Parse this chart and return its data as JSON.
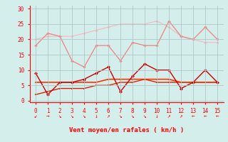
{
  "x": [
    0,
    1,
    2,
    3,
    4,
    5,
    6,
    7,
    8,
    9,
    10,
    11,
    12,
    13,
    14,
    15
  ],
  "line_light_upper": [
    20,
    21,
    21,
    21,
    22,
    23,
    24,
    25,
    25,
    25,
    26,
    24,
    21,
    20,
    19,
    19
  ],
  "line_pink_zigzag": [
    18,
    22,
    21,
    13,
    11,
    18,
    18,
    13,
    19,
    18,
    18,
    26,
    21,
    20,
    24,
    20
  ],
  "line_red_zigzag": [
    9,
    2,
    6,
    6,
    7,
    9,
    11,
    3,
    8,
    12,
    10,
    10,
    4,
    6,
    10,
    6
  ],
  "line_red_trend": [
    2,
    3,
    4,
    4,
    4,
    5,
    5,
    6,
    6,
    7,
    6,
    6,
    6,
    6,
    6,
    6
  ],
  "line_red_flat": [
    6,
    6,
    6,
    6,
    6,
    6,
    7,
    7,
    7,
    7,
    7,
    7,
    6,
    6,
    6,
    6
  ],
  "color_light_upper": "#f5b8b8",
  "color_pink_zigzag": "#f08080",
  "color_red_zigzag": "#cc0000",
  "color_red_trend": "#dd2200",
  "color_red_flat": "#ff3300",
  "bg_color": "#d4eeec",
  "grid_color": "#b0c8c8",
  "xlabel": "Vent moyen/en rafales ( km/h )",
  "yticks": [
    0,
    5,
    10,
    15,
    20,
    25,
    30
  ],
  "xticks": [
    0,
    1,
    2,
    3,
    4,
    5,
    6,
    7,
    8,
    9,
    10,
    11,
    12,
    13,
    14,
    15
  ],
  "ylim": [
    -0.5,
    31
  ],
  "xlim": [
    -0.5,
    15.5
  ],
  "arrows": [
    "↙",
    "→",
    "↘",
    "↘",
    "↘",
    "↓",
    "↗",
    "↘",
    "↘",
    "↘",
    "↓",
    "↗",
    "↗",
    "←",
    "←",
    "←"
  ]
}
